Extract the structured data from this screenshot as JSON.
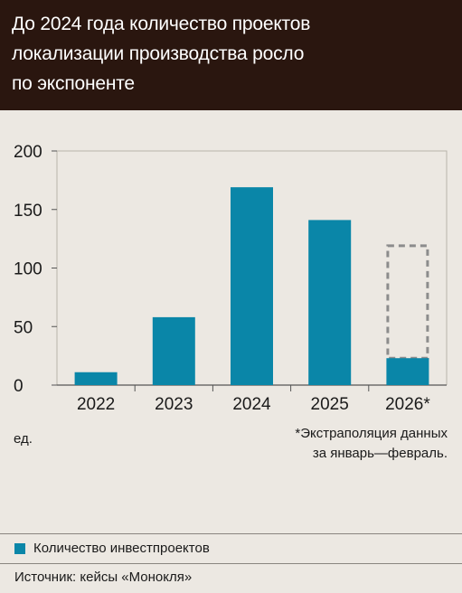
{
  "header": {
    "title_lines": [
      "До 2024 года количество проектов",
      "локализации производства росло",
      "по экспоненте"
    ]
  },
  "colors": {
    "bar": "#0a86a8",
    "header_bg": "#2a160f",
    "extrapolation_outline": "#8c8c8c"
  },
  "chart_data": {
    "type": "bar",
    "categories": [
      "2022",
      "2023",
      "2024",
      "2025",
      "2026*"
    ],
    "series": [
      {
        "name": "Количество инвестпроектов",
        "values": [
          11,
          58,
          169,
          141,
          23
        ]
      }
    ],
    "extrapolated": {
      "category": "2026*",
      "value": 119
    },
    "yticks": [
      "200",
      "150",
      "100",
      "50",
      "0"
    ],
    "ylim": [
      0,
      200
    ],
    "grid": false,
    "unit_label": "ед.",
    "footnote": [
      "*Экстраполяция данных",
      "за январь—февраль."
    ],
    "legend_position": "bottom-left"
  },
  "source": "Источник: кейсы «Монокля»"
}
